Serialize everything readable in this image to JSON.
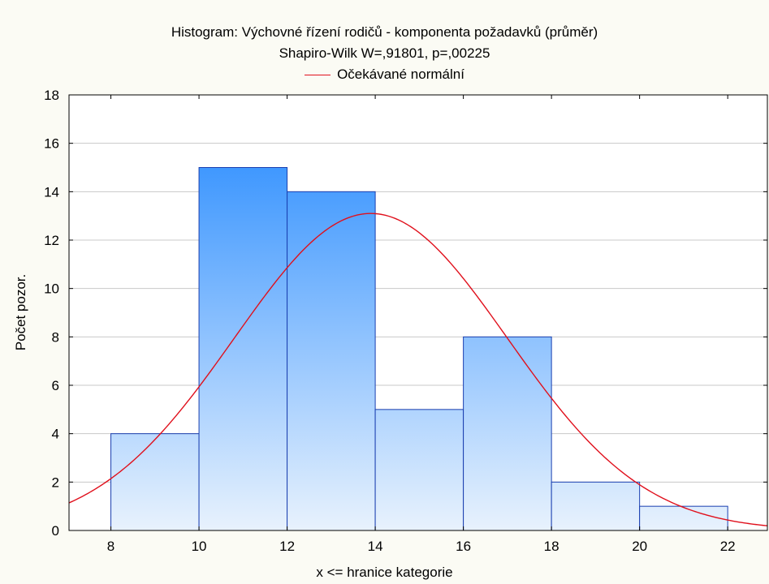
{
  "chart_data": {
    "type": "bar",
    "title": "Histogram: Výchovné řízení rodičů - komponenta požadavků (průměr)",
    "subtitle": "Shapiro-Wilk W=,91801, p=,00225",
    "legend": [
      "Očekávané normální"
    ],
    "legend_placement": "top",
    "xlabel": "x <= hranice kategorie",
    "ylabel": "Počet pozor.",
    "bins": [
      {
        "from": 8,
        "to": 10,
        "count": 4
      },
      {
        "from": 10,
        "to": 12,
        "count": 15
      },
      {
        "from": 12,
        "to": 14,
        "count": 14
      },
      {
        "from": 14,
        "to": 16,
        "count": 5
      },
      {
        "from": 16,
        "to": 18,
        "count": 8
      },
      {
        "from": 18,
        "to": 20,
        "count": 2
      },
      {
        "from": 20,
        "to": 22,
        "count": 1
      }
    ],
    "xlim": [
      7.05,
      22.9
    ],
    "ylim": [
      0,
      18
    ],
    "xticks": [
      8,
      10,
      12,
      14,
      16,
      18,
      20,
      22
    ],
    "yticks": [
      0,
      2,
      4,
      6,
      8,
      10,
      12,
      14,
      16,
      18
    ],
    "grid": true,
    "normal_curve": {
      "name": "Očekávané normální",
      "mean": 13.9,
      "sd": 3.1,
      "peak": 13.1
    },
    "colors": {
      "bar_top": "#1e86ff",
      "bar_bottom": "#e8f2fd",
      "bar_edge": "#1a3fb0",
      "curve": "#e0101c",
      "grid": "#c8c8c8"
    }
  }
}
